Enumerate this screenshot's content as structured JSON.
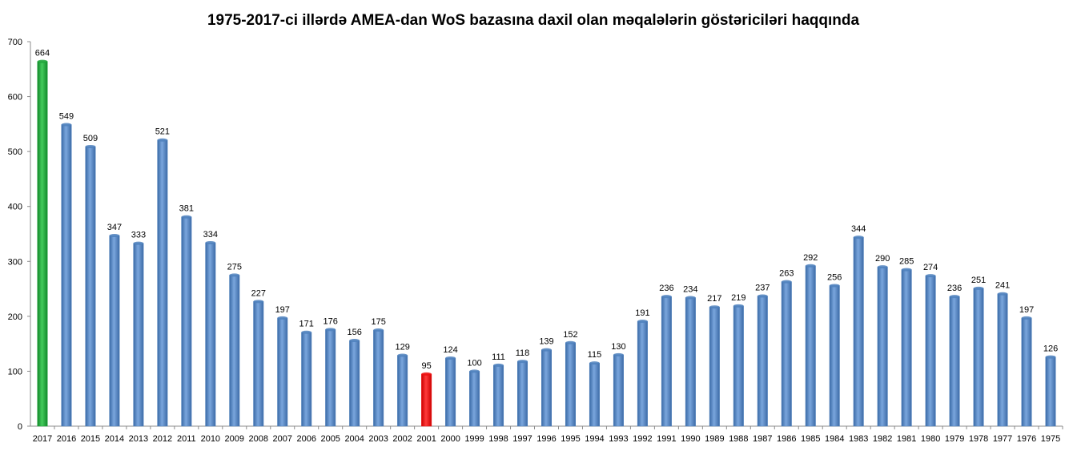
{
  "chart_data": {
    "type": "bar",
    "title": "1975-2017-ci illərdə  AMEA-dan WoS bazasına daxil olan məqalələrin göstəriciləri haqqında",
    "xlabel": "",
    "ylabel": "",
    "ylim": [
      0,
      700
    ],
    "yticks": [
      "0",
      "100",
      "200",
      "300",
      "400",
      "500",
      "600",
      "700"
    ],
    "grid": false,
    "legend": "none",
    "categories": [
      "2017",
      "2016",
      "2015",
      "2014",
      "2013",
      "2012",
      "2011",
      "2010",
      "2009",
      "2008",
      "2007",
      "2006",
      "2005",
      "2004",
      "2003",
      "2002",
      "2001",
      "2000",
      "1999",
      "1998",
      "1997",
      "1996",
      "1995",
      "1994",
      "1993",
      "1992",
      "1991",
      "1990",
      "1989",
      "1988",
      "1987",
      "1986",
      "1985",
      "1984",
      "1983",
      "1982",
      "1981",
      "1980",
      "1979",
      "1978",
      "1977",
      "1976",
      "1975"
    ],
    "values": [
      664,
      549,
      509,
      347,
      333,
      521,
      381,
      334,
      275,
      227,
      197,
      171,
      176,
      156,
      175,
      129,
      95,
      124,
      100,
      111,
      118,
      139,
      152,
      115,
      130,
      191,
      236,
      234,
      217,
      219,
      237,
      263,
      292,
      256,
      344,
      290,
      285,
      274,
      236,
      251,
      241,
      197,
      126
    ],
    "data_labels": [
      "664",
      "549",
      "509",
      "347",
      "333",
      "521",
      "381",
      "334",
      "275",
      "227",
      "197",
      "171",
      "176",
      "156",
      "175",
      "129",
      "95",
      "124",
      "100",
      "111",
      "118",
      "139",
      "152",
      "115",
      "130",
      "191",
      "236",
      "234",
      "217",
      "219",
      "237",
      "263",
      "292",
      "256",
      "344",
      "290",
      "285",
      "274",
      "236",
      "251",
      "241",
      "197",
      "126"
    ],
    "colors": {
      "default": "#4f81bd",
      "highlight_max": "#1fa63a",
      "highlight_min": "#ee1111"
    },
    "highlights": {
      "2017": "highlight_max",
      "2001": "highlight_min"
    }
  }
}
